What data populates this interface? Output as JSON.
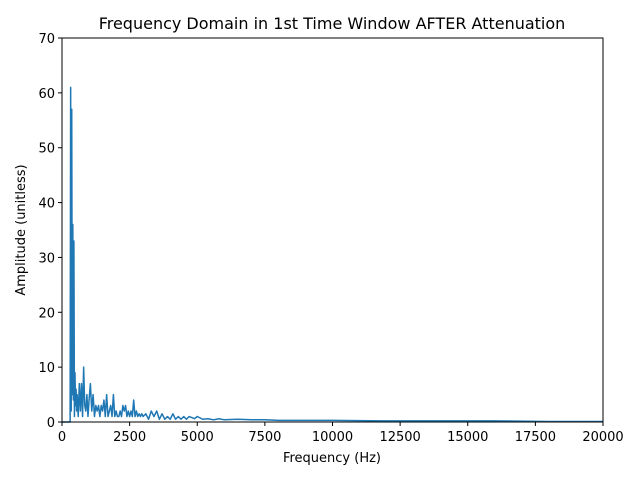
{
  "chart_data": {
    "type": "line",
    "title": "Frequency Domain in 1st Time Window AFTER Attenuation",
    "xlabel": "Frequency (Hz)",
    "ylabel": "Amplitude (unitless)",
    "xlim": [
      0,
      20000
    ],
    "ylim": [
      0,
      70
    ],
    "xticks": [
      0,
      2500,
      5000,
      7500,
      10000,
      12500,
      15000,
      17500,
      20000
    ],
    "yticks": [
      0,
      10,
      20,
      30,
      40,
      50,
      60,
      70
    ],
    "grid": false,
    "legend": "none",
    "line_color": "#1f77b4",
    "series": [
      {
        "x": [
          0,
          300,
          320,
          340,
          360,
          380,
          400,
          420,
          440,
          460,
          480,
          500,
          520,
          540,
          560,
          600,
          640,
          680,
          720,
          760,
          800,
          840,
          880,
          920,
          960,
          1000,
          1050,
          1100,
          1150,
          1200,
          1250,
          1300,
          1350,
          1400,
          1450,
          1500,
          1550,
          1600,
          1650,
          1700,
          1750,
          1800,
          1850,
          1900,
          1950,
          2000,
          2050,
          2100,
          2150,
          2200,
          2250,
          2300,
          2350,
          2400,
          2450,
          2500,
          2550,
          2600,
          2650,
          2700,
          2750,
          2800,
          2850,
          2900,
          2950,
          3000,
          3100,
          3200,
          3300,
          3400,
          3500,
          3600,
          3700,
          3800,
          3900,
          4000,
          4100,
          4200,
          4300,
          4400,
          4500,
          4600,
          4700,
          4800,
          4900,
          5000,
          5200,
          5400,
          5600,
          5800,
          6000,
          6500,
          7000,
          7500,
          8000,
          9000,
          10000,
          12000,
          14000,
          16000,
          18000,
          20000
        ],
        "y": [
          0,
          0,
          61,
          2,
          57,
          5,
          36,
          4,
          33,
          1,
          9,
          3,
          6,
          2,
          5,
          1,
          7,
          2,
          7,
          1,
          10,
          3,
          2,
          5,
          1,
          4,
          7,
          2,
          5,
          1,
          3,
          2,
          3,
          1,
          3,
          2,
          4,
          1,
          5,
          1,
          2,
          3,
          1,
          5,
          1,
          2,
          1,
          1,
          2,
          1,
          3,
          2,
          3,
          1,
          2,
          1,
          2,
          1,
          4,
          1,
          2,
          1,
          1.5,
          1,
          1.5,
          1,
          1.5,
          0.5,
          2,
          1,
          2,
          0.5,
          1.5,
          0.5,
          1,
          0.5,
          1.5,
          0.5,
          1,
          0.5,
          1,
          0.5,
          1,
          0.8,
          0.6,
          1,
          0.5,
          0.6,
          0.4,
          0.6,
          0.4,
          0.5,
          0.4,
          0.4,
          0.3,
          0.3,
          0.3,
          0.2,
          0.2,
          0.2,
          0.1,
          0.1
        ]
      }
    ]
  }
}
